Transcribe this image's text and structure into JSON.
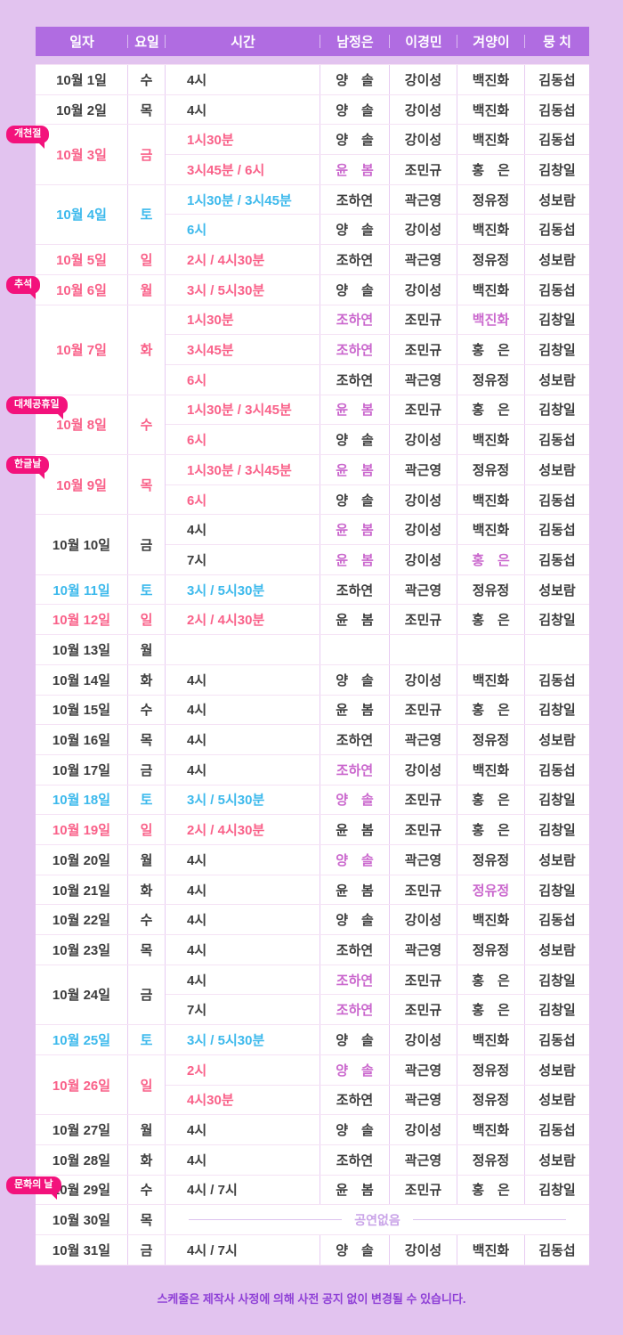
{
  "colors": {
    "page_bg": "#e2c3ef",
    "header_bg": "#b06ce1",
    "header_text": "#ffffff",
    "weekday_text": "#3d3d3d",
    "saturday_text": "#3cb9ec",
    "holiday_text": "#f96189",
    "highlight_text": "#ca67cd",
    "badge_bg": "#f3127c",
    "grid_v": "#e8ccf2",
    "grid_h": "#f5e2f5",
    "noshow_text": "#c9a3e8",
    "noshow_line": "#ddc2ef",
    "footer_text": "#8e3fd6"
  },
  "header": {
    "columns": [
      "일자",
      "요일",
      "시간",
      "남정은",
      "이경민",
      "겨양이",
      "뭉 치"
    ]
  },
  "schedule": [
    {
      "date": "10월 1일",
      "day": "수",
      "type": "wd",
      "shows": [
        {
          "t": "4시",
          "c": [
            "양　솔",
            "강이성",
            "백진화",
            "김동섭"
          ]
        }
      ]
    },
    {
      "date": "10월 2일",
      "day": "목",
      "type": "wd",
      "shows": [
        {
          "t": "4시",
          "c": [
            "양　솔",
            "강이성",
            "백진화",
            "김동섭"
          ]
        }
      ]
    },
    {
      "date": "10월 3일",
      "day": "금",
      "type": "hol",
      "badge": "개천절",
      "shows": [
        {
          "t": "1시30분",
          "c": [
            "양　솔",
            "강이성",
            "백진화",
            "김동섭"
          ]
        },
        {
          "t": "3시45분 / 6시",
          "c": [
            {
              "n": "윤　봄",
              "hl": true
            },
            "조민규",
            "홍　은",
            "김창일"
          ]
        }
      ]
    },
    {
      "date": "10월 4일",
      "day": "토",
      "type": "sat",
      "shows": [
        {
          "t": "1시30분 / 3시45분",
          "c": [
            "조하연",
            "곽근영",
            "정유정",
            "성보람"
          ]
        },
        {
          "t": "6시",
          "c": [
            "양　솔",
            "강이성",
            "백진화",
            "김동섭"
          ]
        }
      ]
    },
    {
      "date": "10월 5일",
      "day": "일",
      "type": "hol",
      "shows": [
        {
          "t": "2시 / 4시30분",
          "c": [
            "조하연",
            "곽근영",
            "정유정",
            "성보람"
          ]
        }
      ]
    },
    {
      "date": "10월 6일",
      "day": "월",
      "type": "hol",
      "badge": "추석",
      "shows": [
        {
          "t": "3시 / 5시30분",
          "c": [
            "양　솔",
            "강이성",
            "백진화",
            "김동섭"
          ]
        }
      ]
    },
    {
      "date": "10월 7일",
      "day": "화",
      "type": "hol",
      "shows": [
        {
          "t": "1시30분",
          "c": [
            {
              "n": "조하연",
              "hl": true
            },
            "조민규",
            {
              "n": "백진화",
              "hl": true
            },
            "김창일"
          ]
        },
        {
          "t": "3시45분",
          "c": [
            {
              "n": "조하연",
              "hl": true
            },
            "조민규",
            "홍　은",
            "김창일"
          ]
        },
        {
          "t": "6시",
          "c": [
            "조하연",
            "곽근영",
            "정유정",
            "성보람"
          ]
        }
      ]
    },
    {
      "date": "10월 8일",
      "day": "수",
      "type": "hol",
      "badge": "대체공휴일",
      "shows": [
        {
          "t": "1시30분 / 3시45분",
          "c": [
            {
              "n": "윤　봄",
              "hl": true
            },
            "조민규",
            "홍　은",
            "김창일"
          ]
        },
        {
          "t": "6시",
          "c": [
            "양　솔",
            "강이성",
            "백진화",
            "김동섭"
          ]
        }
      ]
    },
    {
      "date": "10월 9일",
      "day": "목",
      "type": "hol",
      "badge": "한글날",
      "shows": [
        {
          "t": "1시30분 / 3시45분",
          "c": [
            {
              "n": "윤　봄",
              "hl": true
            },
            "곽근영",
            "정유정",
            "성보람"
          ]
        },
        {
          "t": "6시",
          "c": [
            "양　솔",
            "강이성",
            "백진화",
            "김동섭"
          ]
        }
      ]
    },
    {
      "date": "10월 10일",
      "day": "금",
      "type": "wd",
      "shows": [
        {
          "t": "4시",
          "c": [
            {
              "n": "윤　봄",
              "hl": true
            },
            "강이성",
            "백진화",
            "김동섭"
          ]
        },
        {
          "t": "7시",
          "c": [
            {
              "n": "윤　봄",
              "hl": true
            },
            "강이성",
            {
              "n": "홍　은",
              "hl": true
            },
            "김동섭"
          ]
        }
      ]
    },
    {
      "date": "10월 11일",
      "day": "토",
      "type": "sat",
      "shows": [
        {
          "t": "3시 / 5시30분",
          "c": [
            "조하연",
            "곽근영",
            "정유정",
            "성보람"
          ]
        }
      ]
    },
    {
      "date": "10월 12일",
      "day": "일",
      "type": "hol",
      "shows": [
        {
          "t": "2시 / 4시30분",
          "c": [
            "윤　봄",
            "조민규",
            "홍　은",
            "김창일"
          ]
        }
      ]
    },
    {
      "date": "10월 13일",
      "day": "월",
      "type": "wd",
      "shows": [
        {
          "t": "",
          "c": [
            "",
            "",
            "",
            ""
          ]
        }
      ]
    },
    {
      "date": "10월 14일",
      "day": "화",
      "type": "wd",
      "shows": [
        {
          "t": "4시",
          "c": [
            "양　솔",
            "강이성",
            "백진화",
            "김동섭"
          ]
        }
      ]
    },
    {
      "date": "10월 15일",
      "day": "수",
      "type": "wd",
      "shows": [
        {
          "t": "4시",
          "c": [
            "윤　봄",
            "조민규",
            "홍　은",
            "김창일"
          ]
        }
      ]
    },
    {
      "date": "10월 16일",
      "day": "목",
      "type": "wd",
      "shows": [
        {
          "t": "4시",
          "c": [
            "조하연",
            "곽근영",
            "정유정",
            "성보람"
          ]
        }
      ]
    },
    {
      "date": "10월 17일",
      "day": "금",
      "type": "wd",
      "shows": [
        {
          "t": "4시",
          "c": [
            {
              "n": "조하연",
              "hl": true
            },
            "강이성",
            "백진화",
            "김동섭"
          ]
        }
      ]
    },
    {
      "date": "10월 18일",
      "day": "토",
      "type": "sat",
      "shows": [
        {
          "t": "3시 / 5시30분",
          "c": [
            {
              "n": "양　솔",
              "hl": true
            },
            "조민규",
            "홍　은",
            "김창일"
          ]
        }
      ]
    },
    {
      "date": "10월 19일",
      "day": "일",
      "type": "hol",
      "shows": [
        {
          "t": "2시 / 4시30분",
          "c": [
            "윤　봄",
            "조민규",
            "홍　은",
            "김창일"
          ]
        }
      ]
    },
    {
      "date": "10월 20일",
      "day": "월",
      "type": "wd",
      "shows": [
        {
          "t": "4시",
          "c": [
            {
              "n": "양　솔",
              "hl": true
            },
            "곽근영",
            "정유정",
            "성보람"
          ]
        }
      ]
    },
    {
      "date": "10월 21일",
      "day": "화",
      "type": "wd",
      "shows": [
        {
          "t": "4시",
          "c": [
            "윤　봄",
            "조민규",
            {
              "n": "정유정",
              "hl": true
            },
            "김창일"
          ]
        }
      ]
    },
    {
      "date": "10월 22일",
      "day": "수",
      "type": "wd",
      "shows": [
        {
          "t": "4시",
          "c": [
            "양　솔",
            "강이성",
            "백진화",
            "김동섭"
          ]
        }
      ]
    },
    {
      "date": "10월 23일",
      "day": "목",
      "type": "wd",
      "shows": [
        {
          "t": "4시",
          "c": [
            "조하연",
            "곽근영",
            "정유정",
            "성보람"
          ]
        }
      ]
    },
    {
      "date": "10월 24일",
      "day": "금",
      "type": "wd",
      "shows": [
        {
          "t": "4시",
          "c": [
            {
              "n": "조하연",
              "hl": true
            },
            "조민규",
            "홍　은",
            "김창일"
          ]
        },
        {
          "t": "7시",
          "c": [
            {
              "n": "조하연",
              "hl": true
            },
            "조민규",
            "홍　은",
            "김창일"
          ]
        }
      ]
    },
    {
      "date": "10월 25일",
      "day": "토",
      "type": "sat",
      "shows": [
        {
          "t": "3시 / 5시30분",
          "c": [
            "양　솔",
            "강이성",
            "백진화",
            "김동섭"
          ]
        }
      ]
    },
    {
      "date": "10월 26일",
      "day": "일",
      "type": "hol",
      "shows": [
        {
          "t": "2시",
          "c": [
            {
              "n": "양　솔",
              "hl": true
            },
            "곽근영",
            "정유정",
            "성보람"
          ]
        },
        {
          "t": "4시30분",
          "c": [
            "조하연",
            "곽근영",
            "정유정",
            "성보람"
          ]
        }
      ]
    },
    {
      "date": "10월 27일",
      "day": "월",
      "type": "wd",
      "shows": [
        {
          "t": "4시",
          "c": [
            "양　솔",
            "강이성",
            "백진화",
            "김동섭"
          ]
        }
      ]
    },
    {
      "date": "10월 28일",
      "day": "화",
      "type": "wd",
      "shows": [
        {
          "t": "4시",
          "c": [
            "조하연",
            "곽근영",
            "정유정",
            "성보람"
          ]
        }
      ]
    },
    {
      "date": "10월 29일",
      "day": "수",
      "type": "wd",
      "badge": "문화의 날",
      "shows": [
        {
          "t": "4시 / 7시",
          "c": [
            "윤　봄",
            "조민규",
            "홍　은",
            "김창일"
          ]
        }
      ]
    },
    {
      "date": "10월 30일",
      "day": "목",
      "type": "wd",
      "noshow": "공연없음"
    },
    {
      "date": "10월 31일",
      "day": "금",
      "type": "wd",
      "shows": [
        {
          "t": "4시 / 7시",
          "c": [
            "양　솔",
            "강이성",
            "백진화",
            "김동섭"
          ]
        }
      ]
    }
  ],
  "footer": {
    "note": "스케줄은 제작사 사정에 의해 사전 공지 없이 변경될 수 있습니다."
  }
}
